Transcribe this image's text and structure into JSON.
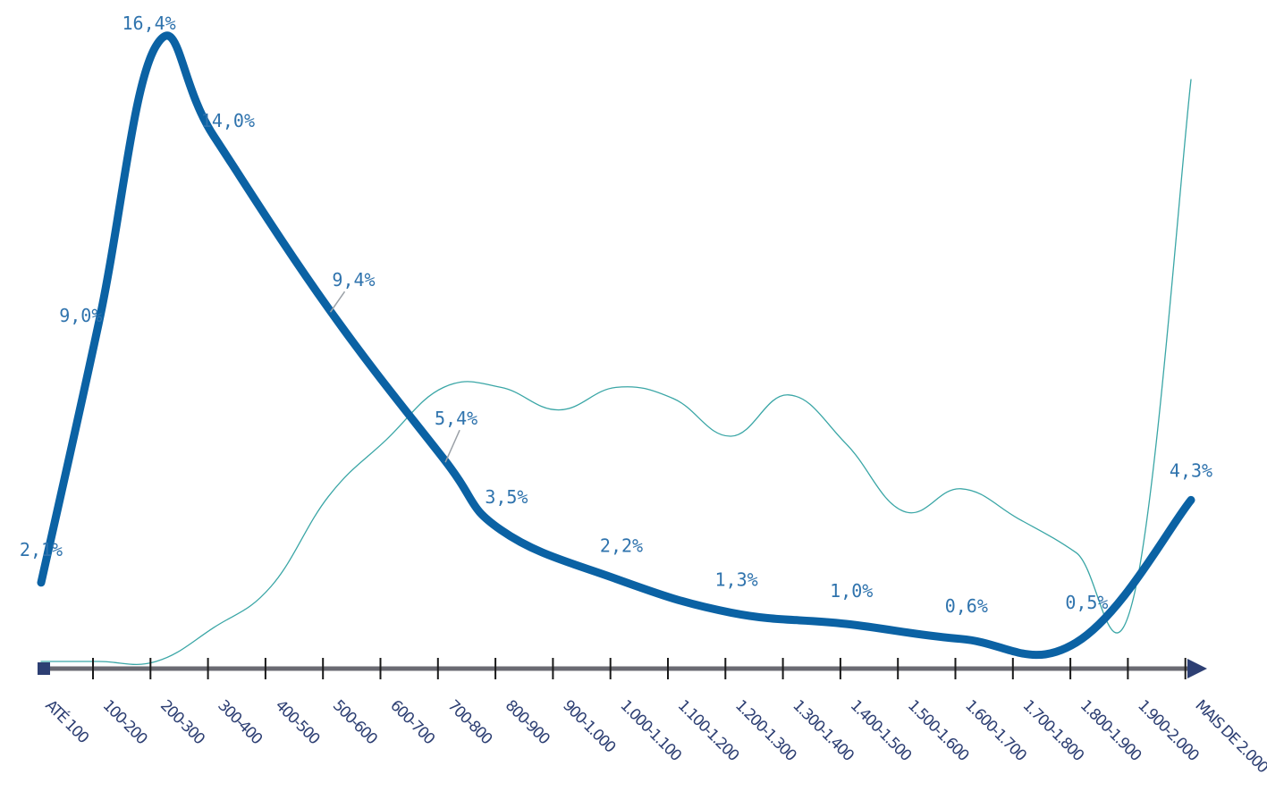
{
  "chart_data": {
    "type": "line",
    "categories": [
      "ATÉ 100",
      "100-200",
      "200-300",
      "300-400",
      "400-500",
      "500-600",
      "600-700",
      "700-800",
      "800-900",
      "900-1.000",
      "1.000-1.100",
      "1.100-1.200",
      "1.200-1.300",
      "1.300-1.400",
      "1.400-1.500",
      "1.500-1.600",
      "1.600-1.700",
      "1.700-1.800",
      "1.800-1.900",
      "1.900-2.000",
      "MAIS DE 2.000"
    ],
    "series": [
      {
        "values": [
          2.1,
          9.0,
          16.4,
          14.0,
          null,
          9.4,
          null,
          5.4,
          3.5,
          null,
          2.2,
          null,
          1.3,
          null,
          1.0,
          null,
          0.6,
          null,
          0.5,
          null,
          4.3
        ],
        "labels": [
          "2,1%",
          "9,0%",
          "16,4%",
          "14,0%",
          "",
          "9,4%",
          "",
          "5,4%",
          "3,5%",
          "",
          "2,2%",
          "",
          "1,3%",
          "",
          "1,0%",
          "",
          "0,6%",
          "",
          "0,5%",
          "",
          "4,3%"
        ],
        "color": "#0b62a4",
        "style": "thick"
      },
      {
        "values": [
          0.0,
          0.0,
          0.0,
          0.9,
          2.0,
          4.4,
          5.9,
          7.3,
          7.3,
          6.7,
          7.3,
          7.0,
          6.0,
          7.1,
          5.8,
          4.0,
          4.6,
          3.8,
          2.9,
          1.7,
          15.5
        ],
        "color": "#3aa6a6",
        "style": "thin"
      }
    ],
    "ylim": [
      0,
      16.5
    ],
    "axis_color": "#6a6a72",
    "axis_arrow_color": "#2d3f73",
    "label_color": "#2f73ad",
    "tick_label_color": "#2d3f73",
    "grid": false,
    "legend": "none"
  }
}
